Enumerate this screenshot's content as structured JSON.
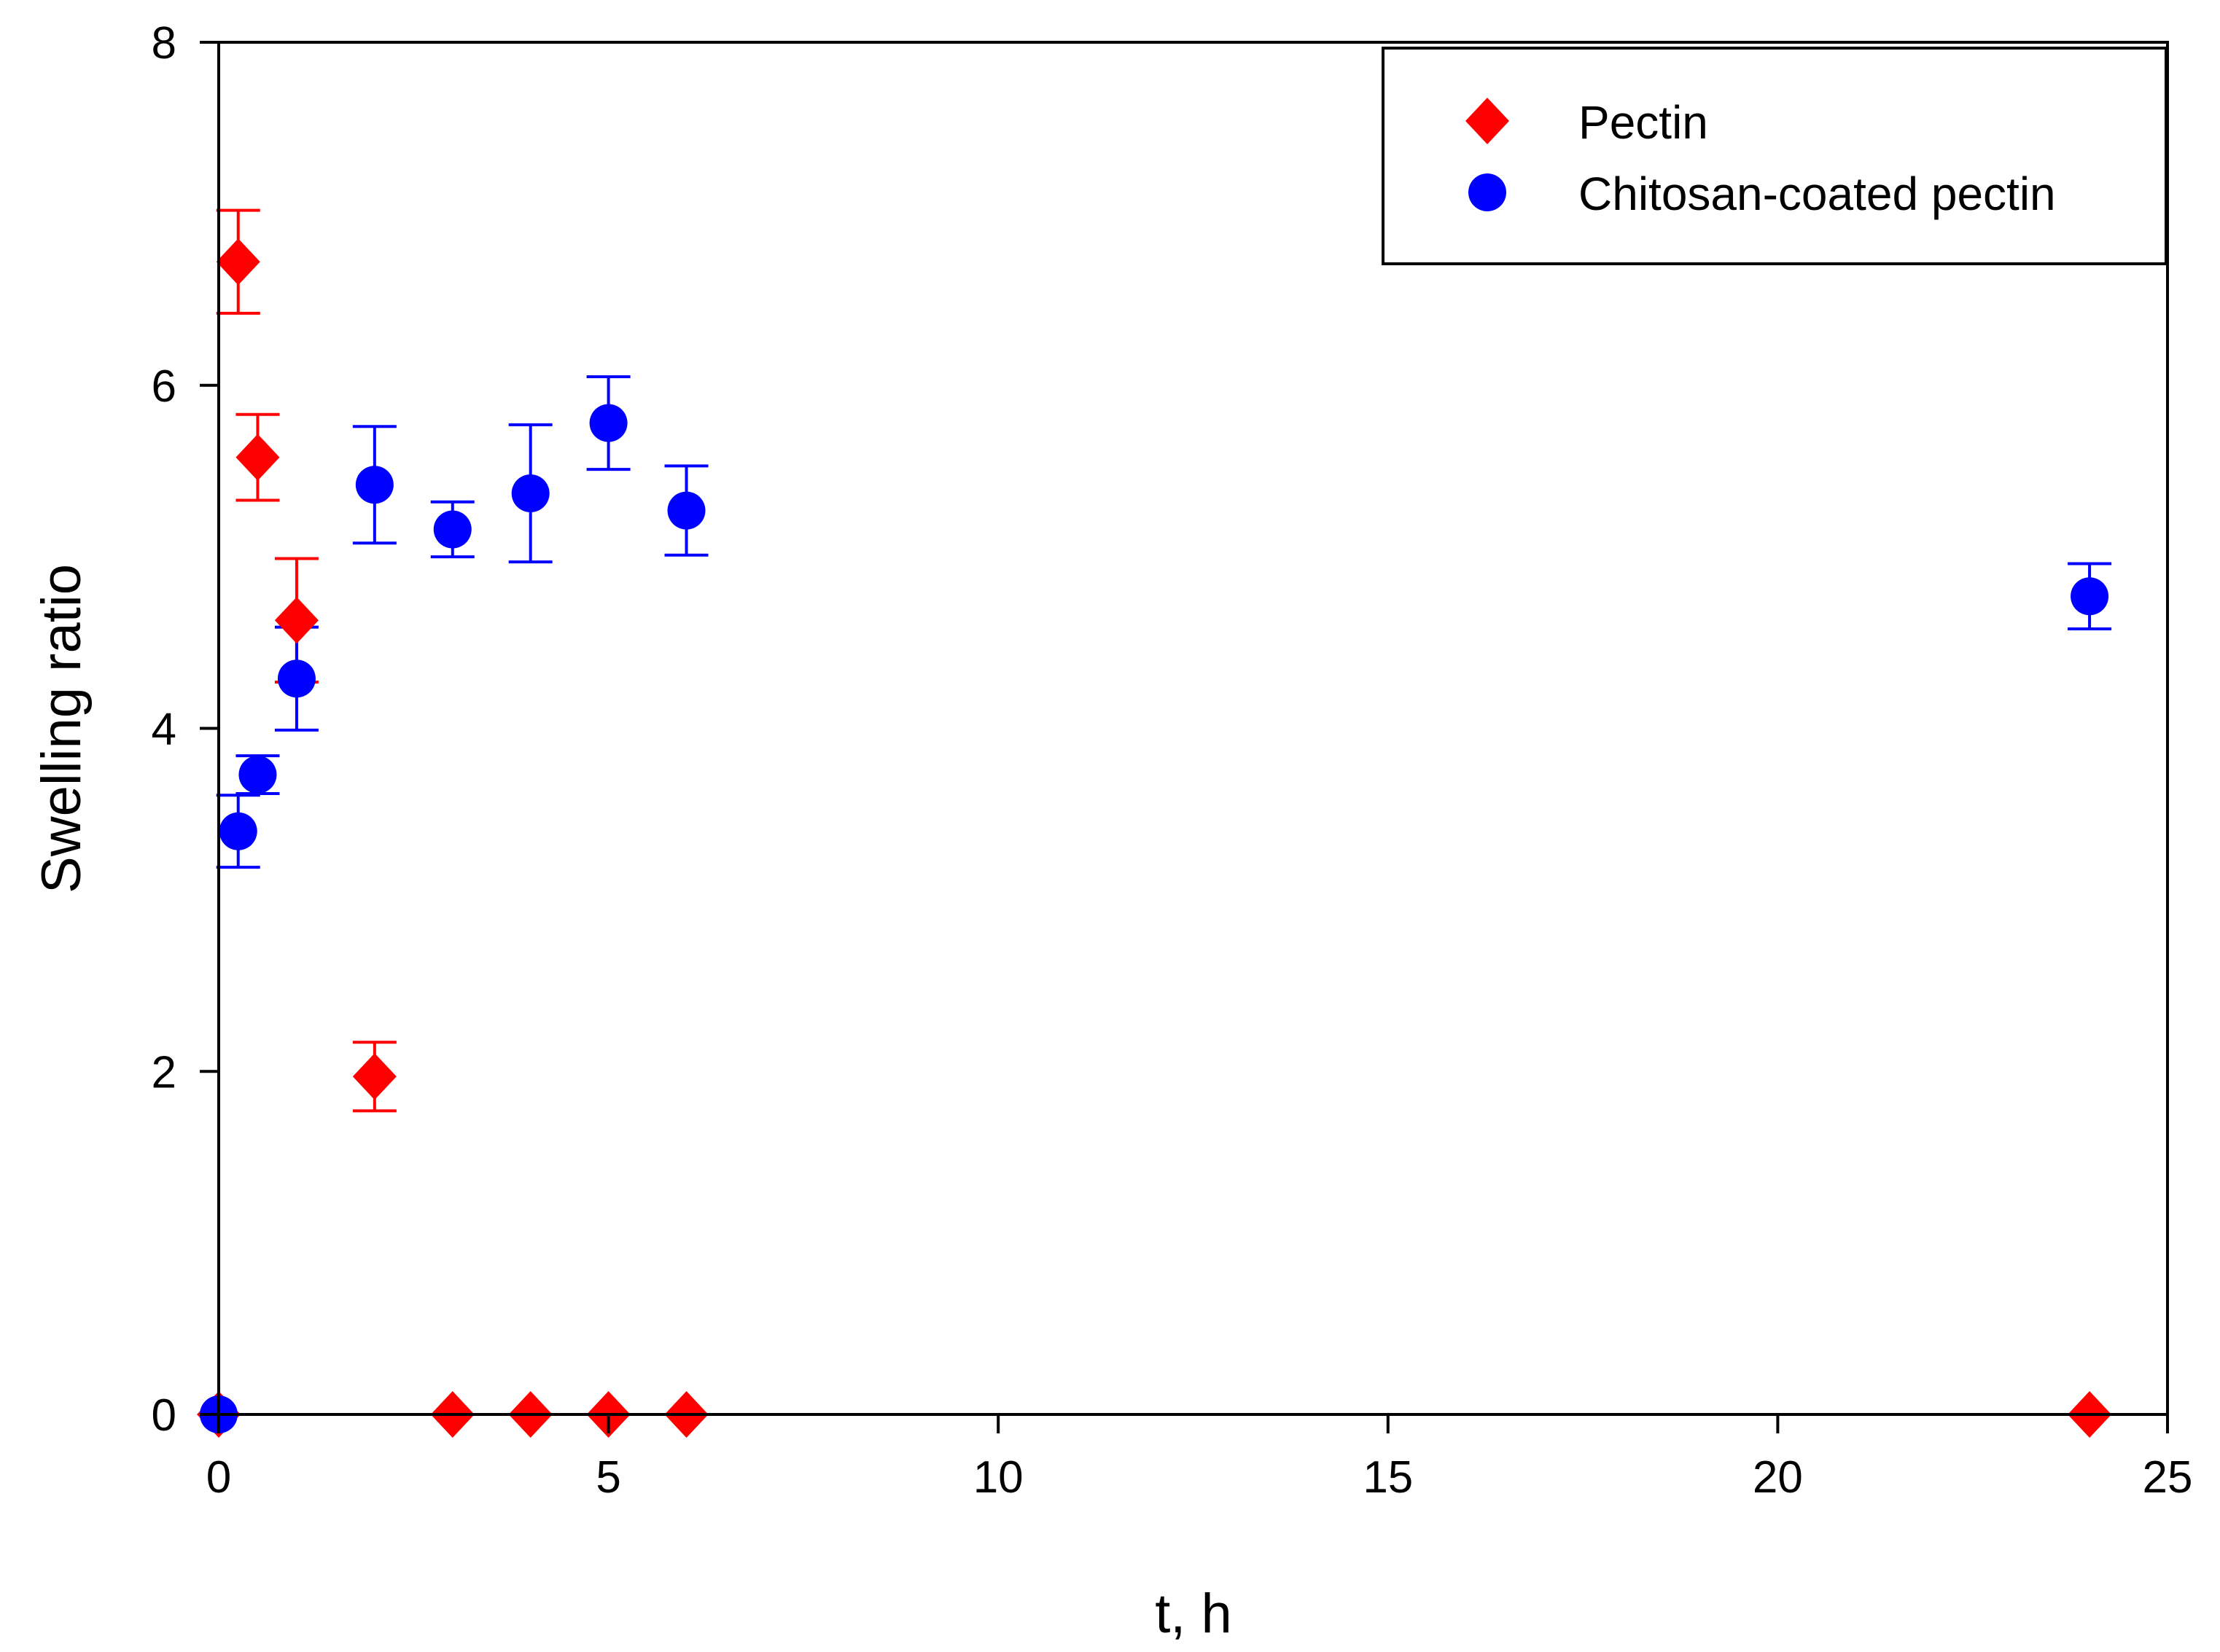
{
  "chart_data": {
    "type": "scatter",
    "title": "",
    "xlabel": "t, h",
    "ylabel": "Swelling ratio",
    "xlim": [
      0,
      25
    ],
    "ylim": [
      0,
      8
    ],
    "xticks": [
      0,
      5,
      10,
      15,
      20,
      25
    ],
    "yticks": [
      0,
      2,
      4,
      6,
      8
    ],
    "xtick_labels": [
      "0",
      "5",
      "10",
      "15",
      "20",
      "25"
    ],
    "ytick_labels": [
      "0",
      "2",
      "4",
      "6",
      "8"
    ],
    "grid": false,
    "legend_position": "top-right",
    "series": [
      {
        "name": "Pectin",
        "marker": "diamond",
        "color": "#ff0000",
        "x": [
          0,
          0.25,
          0.5,
          1,
          2,
          3,
          4,
          5,
          6,
          24
        ],
        "y": [
          0,
          6.72,
          5.58,
          4.63,
          1.97,
          0,
          0,
          0,
          0,
          0
        ],
        "error": [
          0,
          0.3,
          0.25,
          0.36,
          0.2,
          0,
          0,
          0,
          0,
          0
        ]
      },
      {
        "name": "Chitosan-coated pectin",
        "marker": "circle",
        "color": "#0000ff",
        "x": [
          0,
          0.25,
          0.5,
          1,
          2,
          3,
          4,
          5,
          6,
          24
        ],
        "y": [
          0,
          3.4,
          3.73,
          4.29,
          5.42,
          5.16,
          5.37,
          5.78,
          5.27,
          4.77
        ],
        "error": [
          0,
          0.21,
          0.11,
          0.3,
          0.34,
          0.16,
          0.4,
          0.27,
          0.26,
          0.19
        ]
      }
    ]
  }
}
